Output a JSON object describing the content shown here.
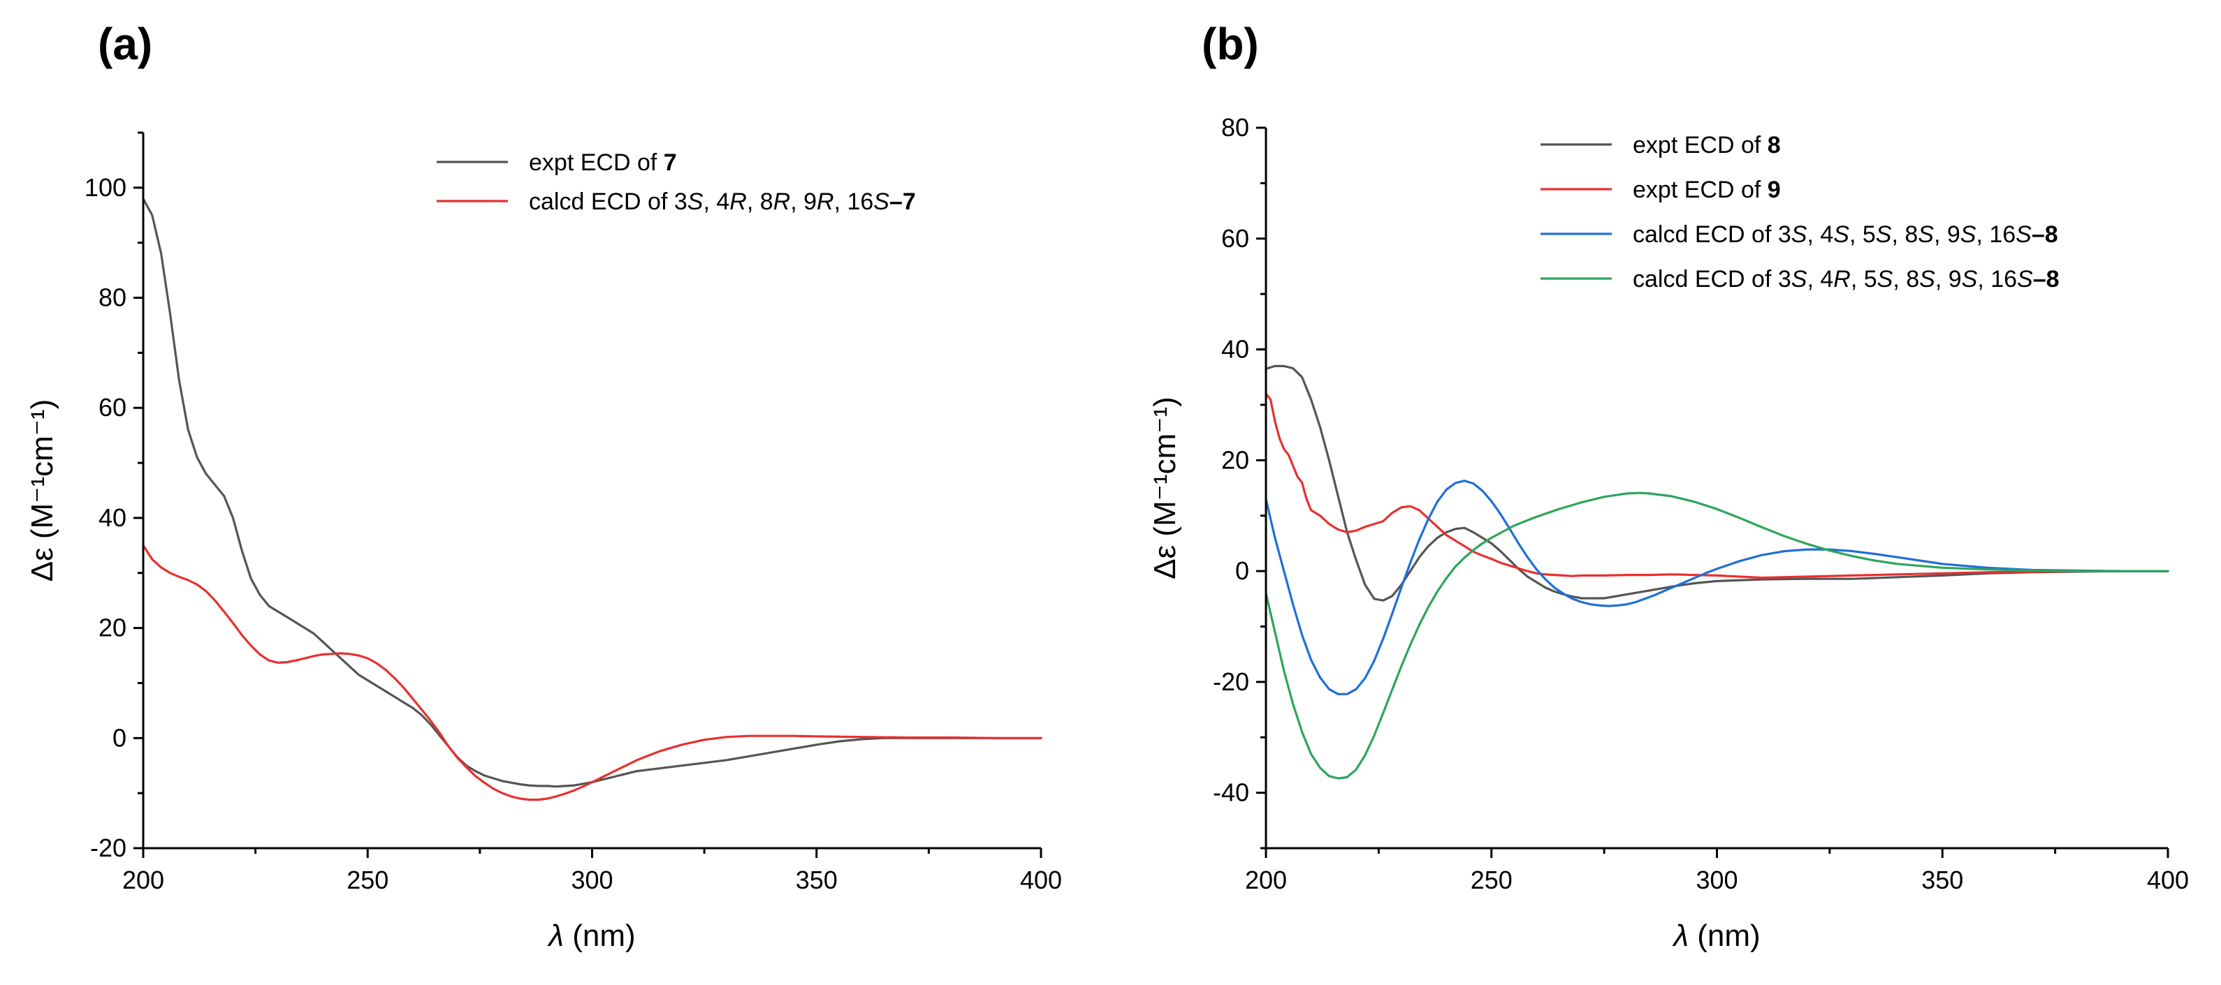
{
  "chart_data": [
    {
      "panel": "(a)",
      "type": "line",
      "xlabel_sym": "λ",
      "xlabel_unit": " (nm)",
      "ylabel": "Δε (M⁻¹cm⁻¹)",
      "xlim": [
        200,
        400
      ],
      "ylim": [
        -20,
        110
      ],
      "xticks": [
        200,
        250,
        300,
        350,
        400
      ],
      "yticks": [
        -20,
        0,
        20,
        40,
        60,
        80,
        100
      ],
      "yminor": [
        -10,
        10,
        30,
        50,
        70,
        90,
        110
      ],
      "xminor": [
        225,
        275,
        325,
        375
      ],
      "legend_position": "top-right",
      "series": [
        {
          "name": "expt ECD of 7",
          "legend_parts": [
            {
              "t": "expt ECD of ",
              "s": "n"
            },
            {
              "t": "7",
              "s": "b"
            }
          ],
          "color": "#555555",
          "x": [
            200,
            202,
            204,
            206,
            208,
            210,
            212,
            214,
            216,
            218,
            220,
            222,
            224,
            226,
            228,
            230,
            232,
            234,
            236,
            238,
            240,
            242,
            244,
            246,
            248,
            250,
            252,
            254,
            256,
            258,
            260,
            262,
            264,
            266,
            268,
            270,
            272,
            274,
            276,
            278,
            280,
            282,
            284,
            286,
            288,
            290,
            292,
            294,
            296,
            298,
            300,
            305,
            310,
            315,
            320,
            325,
            330,
            335,
            340,
            345,
            350,
            355,
            360,
            365,
            370,
            375,
            380,
            390,
            400
          ],
          "y": [
            98,
            95,
            88,
            77,
            65,
            56,
            51,
            48,
            46,
            44,
            40,
            34,
            29,
            26,
            24,
            23,
            22,
            21,
            20,
            19,
            17.5,
            16,
            14.5,
            13,
            11.5,
            10.5,
            9.5,
            8.5,
            7.5,
            6.5,
            5.5,
            4.2,
            2.5,
            0.5,
            -1.5,
            -3.5,
            -5,
            -6,
            -6.8,
            -7.3,
            -7.8,
            -8.1,
            -8.4,
            -8.6,
            -8.7,
            -8.7,
            -8.8,
            -8.7,
            -8.6,
            -8.3,
            -8,
            -7,
            -6,
            -5.5,
            -5,
            -4.5,
            -4,
            -3.3,
            -2.6,
            -1.9,
            -1.2,
            -0.6,
            -0.2,
            0,
            0,
            0,
            0,
            0,
            0
          ]
        },
        {
          "name": "calcd ECD of 3S, 4R, 8R, 9R, 16S–7",
          "legend_parts": [
            {
              "t": "calcd ECD of 3",
              "s": "n"
            },
            {
              "t": "S",
              "s": "i"
            },
            {
              "t": ", 4",
              "s": "n"
            },
            {
              "t": "R",
              "s": "i"
            },
            {
              "t": ", 8",
              "s": "n"
            },
            {
              "t": "R",
              "s": "i"
            },
            {
              "t": ", 9",
              "s": "n"
            },
            {
              "t": "R",
              "s": "i"
            },
            {
              "t": ", 16",
              "s": "n"
            },
            {
              "t": "S",
              "s": "i"
            },
            {
              "t": "–7",
              "s": "b"
            }
          ],
          "color": "#e8302f",
          "x": [
            200,
            202,
            204,
            206,
            208,
            210,
            212,
            214,
            216,
            218,
            220,
            222,
            224,
            226,
            228,
            230,
            232,
            234,
            236,
            238,
            240,
            242,
            244,
            246,
            248,
            250,
            252,
            254,
            256,
            258,
            260,
            262,
            264,
            266,
            268,
            270,
            272,
            274,
            276,
            278,
            280,
            282,
            284,
            286,
            288,
            290,
            292,
            294,
            296,
            298,
            300,
            305,
            310,
            315,
            320,
            325,
            330,
            335,
            340,
            345,
            350,
            360,
            370,
            380,
            390,
            400
          ],
          "y": [
            35,
            32.5,
            31,
            30,
            29.3,
            28.7,
            27.9,
            26.7,
            25,
            23,
            20.9,
            18.7,
            16.8,
            15.2,
            14.1,
            13.7,
            13.8,
            14.1,
            14.5,
            14.9,
            15.2,
            15.3,
            15.4,
            15.3,
            15,
            14.5,
            13.6,
            12.4,
            10.9,
            9.2,
            7.2,
            5.2,
            3.2,
            1,
            -1.5,
            -3.6,
            -5.3,
            -6.9,
            -8.1,
            -9.2,
            -10,
            -10.6,
            -11,
            -11.2,
            -11.2,
            -11,
            -10.6,
            -10.1,
            -9.5,
            -8.8,
            -8,
            -6,
            -4,
            -2.4,
            -1.2,
            -0.3,
            0.2,
            0.4,
            0.4,
            0.4,
            0.3,
            0.2,
            0.1,
            0.1,
            0,
            0
          ]
        }
      ]
    },
    {
      "panel": "(b)",
      "type": "line",
      "xlabel_sym": "λ",
      "xlabel_unit": " (nm)",
      "ylabel": "Δε (M⁻¹cm⁻¹)",
      "xlim": [
        200,
        400
      ],
      "ylim": [
        -50,
        80
      ],
      "xticks": [
        200,
        250,
        300,
        350,
        400
      ],
      "yticks": [
        -40,
        -20,
        0,
        20,
        40,
        60,
        80
      ],
      "yminor": [
        -50,
        -30,
        -10,
        10,
        30,
        50,
        70
      ],
      "xminor": [
        225,
        275,
        325,
        375
      ],
      "legend_position": "top-right",
      "series": [
        {
          "name": "expt ECD of 8",
          "legend_parts": [
            {
              "t": "expt ECD of ",
              "s": "n"
            },
            {
              "t": "8",
              "s": "b"
            }
          ],
          "color": "#555555",
          "x": [
            200,
            202,
            204,
            206,
            208,
            210,
            212,
            214,
            216,
            218,
            220,
            222,
            224,
            226,
            228,
            230,
            232,
            234,
            236,
            238,
            240,
            242,
            244,
            246,
            248,
            250,
            252,
            254,
            256,
            258,
            260,
            262,
            264,
            266,
            268,
            270,
            275,
            280,
            285,
            290,
            295,
            300,
            310,
            320,
            330,
            340,
            350,
            360,
            370,
            380,
            390,
            400
          ],
          "y": [
            36.5,
            37,
            37,
            36.6,
            35,
            31,
            26,
            20,
            13.5,
            7,
            2,
            -2.5,
            -5,
            -5.3,
            -4.5,
            -2.5,
            0,
            2.5,
            4.5,
            6,
            7,
            7.6,
            7.8,
            7,
            6,
            5,
            3.6,
            2,
            0.4,
            -1,
            -2,
            -3,
            -3.7,
            -4.2,
            -4.6,
            -4.9,
            -4.9,
            -4.2,
            -3.5,
            -2.8,
            -2.2,
            -1.8,
            -1.5,
            -1.4,
            -1.4,
            -1.1,
            -0.8,
            -0.4,
            -0.2,
            -0.1,
            0,
            0
          ]
        },
        {
          "name": "expt ECD of 9",
          "legend_parts": [
            {
              "t": "expt ECD of ",
              "s": "n"
            },
            {
              "t": "9",
              "s": "b"
            }
          ],
          "color": "#e8302f",
          "x": [
            200,
            201,
            202,
            203,
            204,
            205,
            206,
            207,
            208,
            209,
            210,
            212,
            214,
            216,
            218,
            220,
            222,
            224,
            226,
            228,
            230,
            232,
            234,
            236,
            238,
            240,
            242,
            244,
            246,
            248,
            250,
            252,
            254,
            256,
            258,
            260,
            262,
            264,
            266,
            268,
            270,
            272,
            275,
            280,
            285,
            290,
            295,
            300,
            305,
            310,
            320,
            330,
            340,
            350,
            360,
            370,
            380,
            390,
            400
          ],
          "y": [
            32,
            31,
            27,
            24,
            22,
            21,
            19,
            17,
            16,
            13,
            11,
            10,
            8.5,
            7.5,
            7,
            7.3,
            8,
            8.5,
            9,
            10.5,
            11.5,
            11.7,
            11,
            9.5,
            8,
            6.5,
            5.5,
            4.5,
            3.5,
            2.8,
            2.2,
            1.5,
            1,
            0.5,
            0,
            -0.4,
            -0.6,
            -0.7,
            -0.8,
            -0.9,
            -0.8,
            -0.8,
            -0.8,
            -0.7,
            -0.7,
            -0.6,
            -0.7,
            -0.8,
            -1,
            -1.2,
            -1,
            -0.8,
            -0.6,
            -0.4,
            -0.2,
            -0.1,
            0,
            0,
            0
          ]
        },
        {
          "name": "calcd ECD of 3S, 4S, 5S, 8S, 9S, 16S–8",
          "legend_parts": [
            {
              "t": "calcd ECD of 3",
              "s": "n"
            },
            {
              "t": "S",
              "s": "i"
            },
            {
              "t": ", 4",
              "s": "n"
            },
            {
              "t": "S",
              "s": "i"
            },
            {
              "t": ", 5",
              "s": "n"
            },
            {
              "t": "S",
              "s": "i"
            },
            {
              "t": ", 8",
              "s": "n"
            },
            {
              "t": "S",
              "s": "i"
            },
            {
              "t": ", 9",
              "s": "n"
            },
            {
              "t": "S",
              "s": "i"
            },
            {
              "t": ", 16",
              "s": "n"
            },
            {
              "t": "S",
              "s": "i"
            },
            {
              "t": "–8",
              "s": "b"
            }
          ],
          "color": "#1f6fd8",
          "x": [
            200,
            202,
            204,
            206,
            208,
            210,
            212,
            214,
            216,
            218,
            220,
            222,
            224,
            226,
            228,
            230,
            232,
            234,
            236,
            238,
            240,
            242,
            244,
            246,
            248,
            250,
            252,
            254,
            256,
            258,
            260,
            262,
            264,
            266,
            268,
            270,
            272,
            274,
            276,
            278,
            280,
            282,
            284,
            286,
            288,
            290,
            292,
            294,
            296,
            298,
            300,
            305,
            310,
            315,
            320,
            325,
            330,
            335,
            340,
            345,
            350,
            360,
            370,
            380,
            390,
            400
          ],
          "y": [
            13,
            6,
            0,
            -6,
            -11.5,
            -16,
            -19.2,
            -21.3,
            -22.2,
            -22.2,
            -21.3,
            -19.3,
            -16.2,
            -12.2,
            -7.7,
            -3,
            1.5,
            5.7,
            9.4,
            12.5,
            14.7,
            15.9,
            16.3,
            15.8,
            14.5,
            12.6,
            10.3,
            7.7,
            5,
            2.5,
            0.3,
            -1.5,
            -3,
            -4.1,
            -5,
            -5.6,
            -6,
            -6.2,
            -6.3,
            -6.2,
            -6,
            -5.6,
            -5,
            -4.4,
            -3.7,
            -3,
            -2.3,
            -1.6,
            -0.9,
            -0.2,
            0.4,
            1.8,
            2.9,
            3.6,
            3.9,
            3.9,
            3.6,
            3.1,
            2.5,
            1.9,
            1.3,
            0.6,
            0.2,
            0.1,
            0,
            0
          ]
        },
        {
          "name": "calcd ECD of 3S, 4R, 5S, 8S, 9S, 16S–8",
          "legend_parts": [
            {
              "t": "calcd ECD of 3",
              "s": "n"
            },
            {
              "t": "S",
              "s": "i"
            },
            {
              "t": ", 4",
              "s": "n"
            },
            {
              "t": "R",
              "s": "i"
            },
            {
              "t": ", 5",
              "s": "n"
            },
            {
              "t": "S",
              "s": "i"
            },
            {
              "t": ", 8",
              "s": "n"
            },
            {
              "t": "S",
              "s": "i"
            },
            {
              "t": ", 9",
              "s": "n"
            },
            {
              "t": "S",
              "s": "i"
            },
            {
              "t": ", 16",
              "s": "n"
            },
            {
              "t": "S",
              "s": "i"
            },
            {
              "t": "–8",
              "s": "b"
            }
          ],
          "color": "#2ea55c",
          "x": [
            200,
            202,
            204,
            206,
            208,
            210,
            212,
            214,
            216,
            218,
            220,
            222,
            224,
            226,
            228,
            230,
            232,
            234,
            236,
            238,
            240,
            242,
            244,
            246,
            248,
            250,
            255,
            260,
            265,
            270,
            275,
            280,
            283,
            285,
            290,
            295,
            300,
            305,
            310,
            315,
            320,
            325,
            330,
            335,
            340,
            350,
            360,
            370,
            380,
            390,
            400
          ],
          "y": [
            -4,
            -11,
            -18,
            -24,
            -29,
            -33,
            -35.5,
            -37,
            -37.4,
            -37.2,
            -35.8,
            -33.2,
            -29.7,
            -25.6,
            -21.4,
            -17.2,
            -13.3,
            -9.7,
            -6.5,
            -3.7,
            -1.3,
            0.8,
            2.4,
            3.8,
            5,
            6,
            8.2,
            9.8,
            11.2,
            12.4,
            13.4,
            14,
            14.1,
            14,
            13.5,
            12.5,
            11.2,
            9.6,
            7.9,
            6.3,
            4.9,
            3.7,
            2.7,
            1.9,
            1.3,
            0.6,
            0.3,
            0.1,
            0,
            0,
            0
          ]
        }
      ]
    }
  ]
}
